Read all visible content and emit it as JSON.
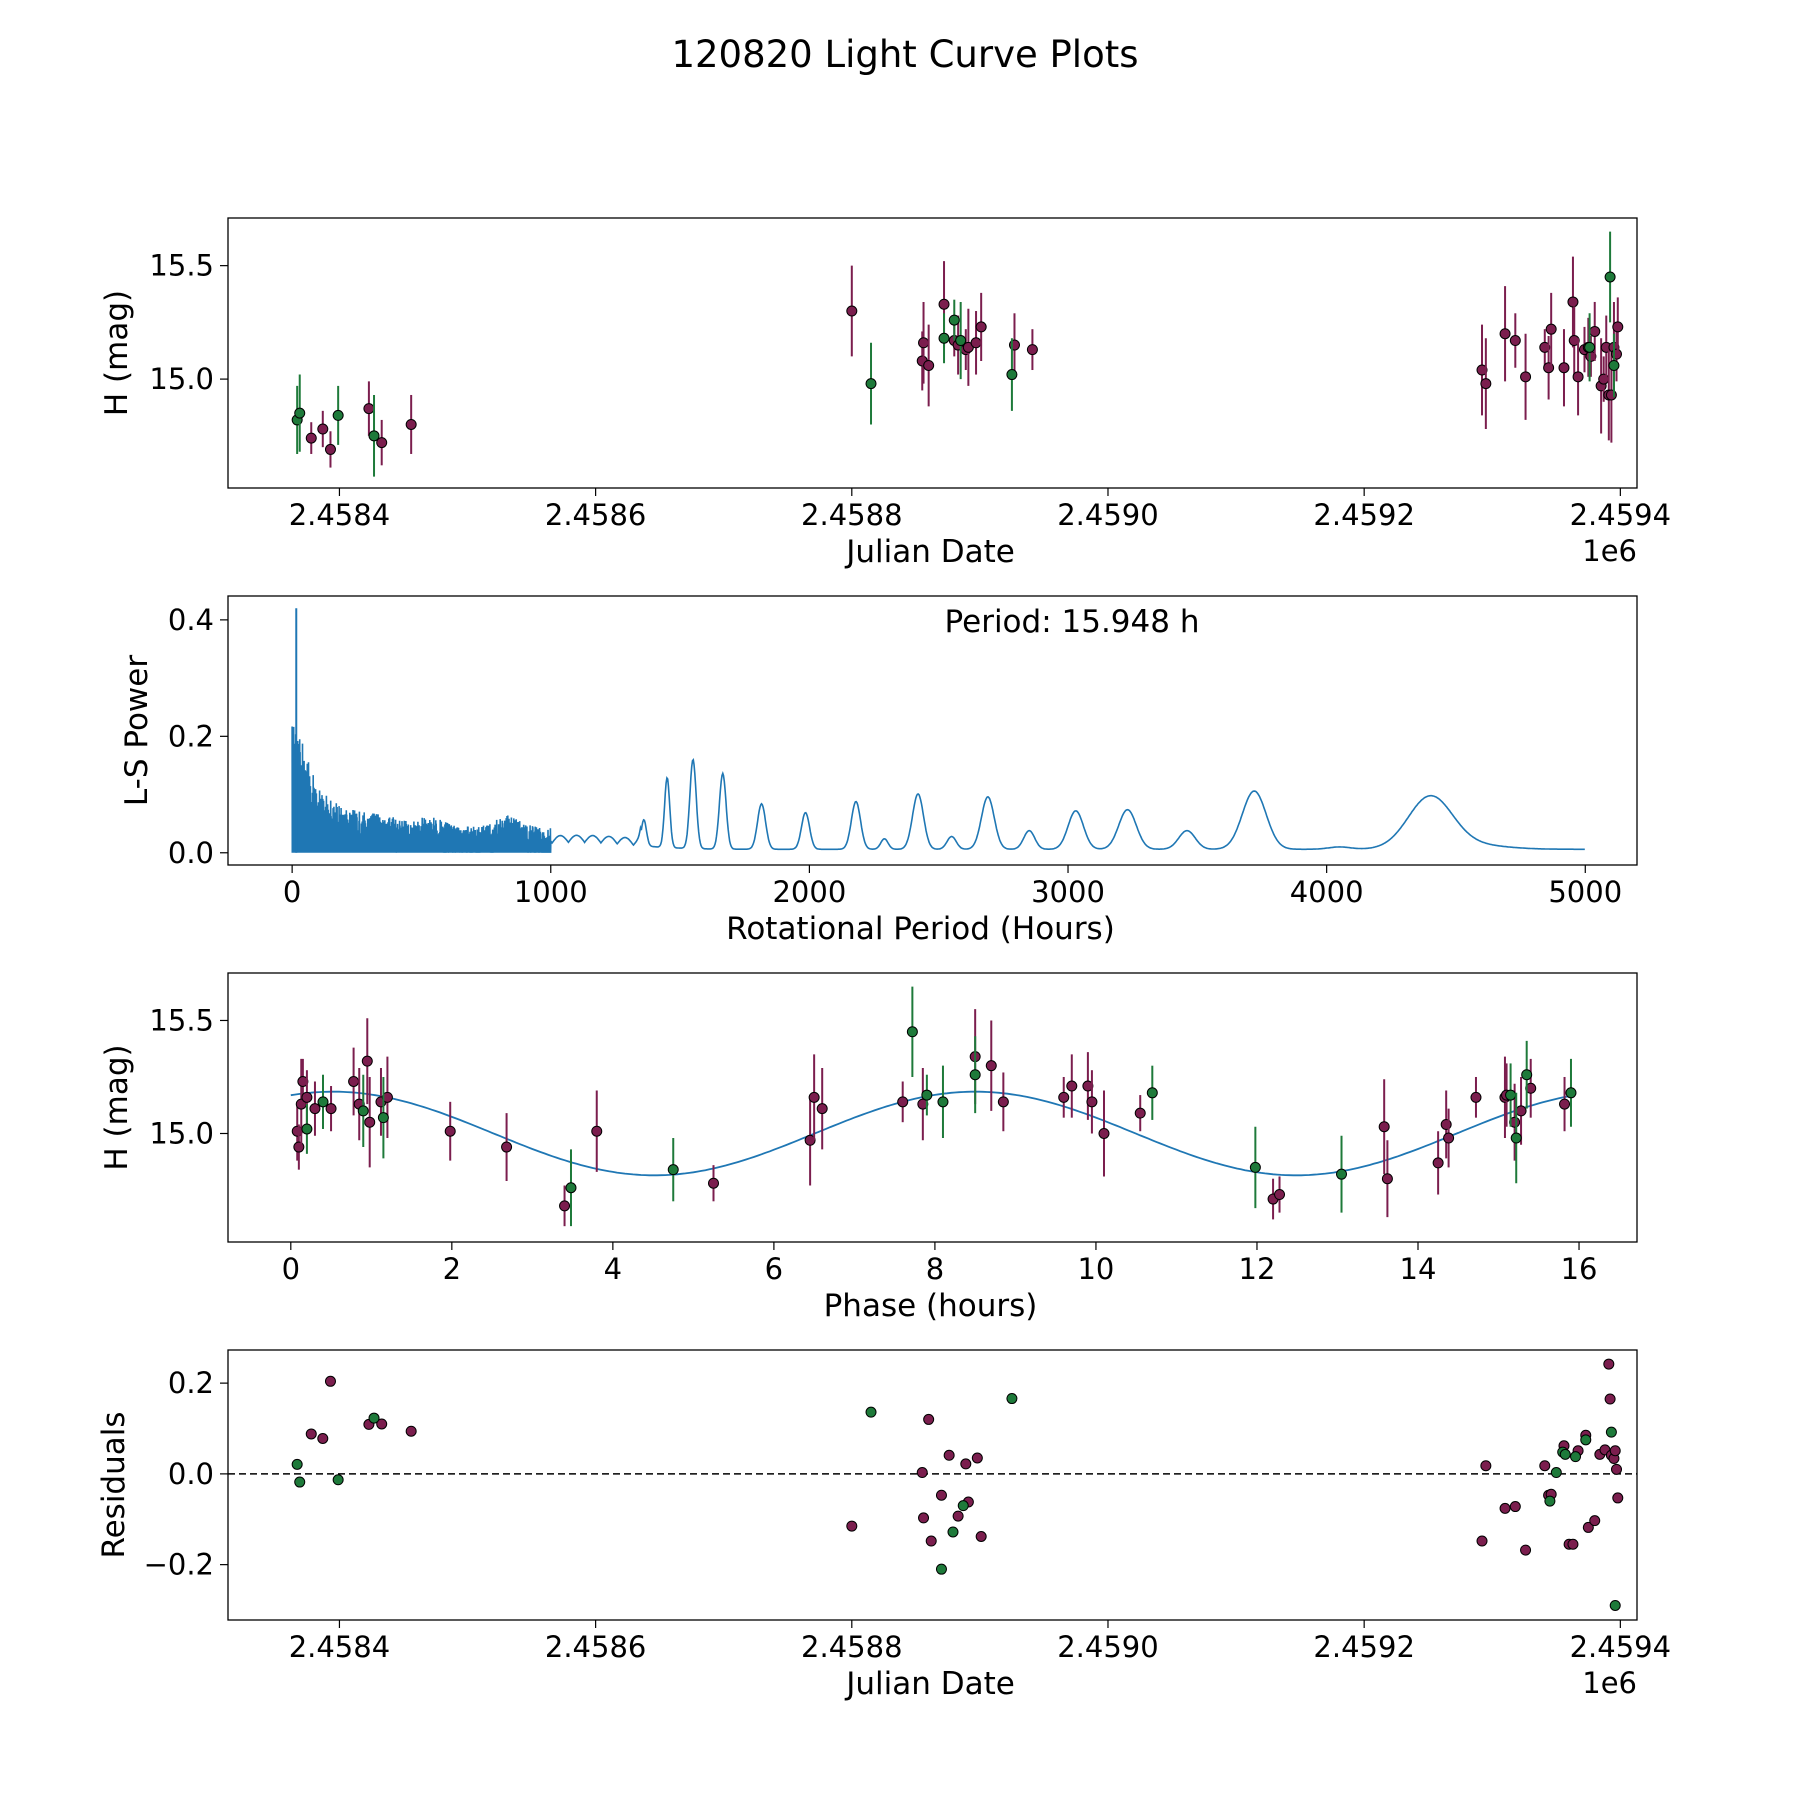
{
  "figure_title": "120820 Light Curve Plots",
  "colors": {
    "filter_a": "#7b1e4e",
    "filter_b": "#1e7a3a",
    "curve": "#1f77b4",
    "edge": "#000000"
  },
  "chart_data": [
    {
      "type": "scatter",
      "xlabel": "Julian Date",
      "ylabel": "H (mag)",
      "offset_label": "1e6",
      "xlim": [
        2458313,
        2459413
      ],
      "ylim": [
        14.52,
        15.71
      ],
      "xticks": [
        2458400,
        2458600,
        2458800,
        2459000,
        2459200,
        2459400
      ],
      "xtick_labels": [
        "2.4584",
        "2.4586",
        "2.4588",
        "2.4590",
        "2.4592",
        "2.4594"
      ],
      "yticks": [
        15.0,
        15.5
      ],
      "ytick_labels": [
        "15.0",
        "15.5"
      ],
      "series": [
        {
          "name": "filter_a",
          "x": [
            2458378,
            2458387,
            2458393,
            2458423,
            2458433,
            2458456,
            2458800,
            2458855,
            2458856,
            2458860,
            2458872,
            2458880,
            2458883,
            2458889,
            2458891,
            2458897,
            2458901,
            2458927,
            2458941,
            2459292,
            2459295,
            2459310,
            2459318,
            2459326,
            2459341,
            2459344,
            2459346,
            2459356,
            2459363,
            2459364,
            2459367,
            2459372,
            2459375,
            2459377,
            2459380,
            2459385,
            2459387,
            2459389,
            2459391,
            2459393,
            2459395,
            2459397,
            2459398
          ],
          "y": [
            14.74,
            14.78,
            14.69,
            14.87,
            14.72,
            14.8,
            15.3,
            15.08,
            15.16,
            15.06,
            15.33,
            15.17,
            15.15,
            15.13,
            15.14,
            15.16,
            15.23,
            15.15,
            15.13,
            15.04,
            14.98,
            15.2,
            15.17,
            15.01,
            15.14,
            15.05,
            15.22,
            15.05,
            15.34,
            15.17,
            15.01,
            15.13,
            15.14,
            15.1,
            15.21,
            14.97,
            15.0,
            15.14,
            14.93,
            14.93,
            15.14,
            15.11,
            15.23
          ],
          "err": [
            0.07,
            0.08,
            0.08,
            0.12,
            0.1,
            0.13,
            0.2,
            0.13,
            0.18,
            0.18,
            0.19,
            0.07,
            0.13,
            0.09,
            0.17,
            0.14,
            0.15,
            0.14,
            0.09,
            0.2,
            0.2,
            0.21,
            0.12,
            0.19,
            0.08,
            0.14,
            0.16,
            0.17,
            0.2,
            0.15,
            0.17,
            0.1,
            0.13,
            0.09,
            0.13,
            0.21,
            0.1,
            0.14,
            0.2,
            0.21,
            0.2,
            0.12,
            0.13
          ]
        },
        {
          "name": "filter_b",
          "x": [
            2458367,
            2458369,
            2458399,
            2458427,
            2458815,
            2458872,
            2458880,
            2458885,
            2458925,
            2459376,
            2459392,
            2459395
          ],
          "y": [
            14.82,
            14.85,
            14.84,
            14.75,
            14.98,
            15.18,
            15.26,
            15.17,
            15.02,
            15.14,
            15.45,
            15.06
          ],
          "err": [
            0.15,
            0.17,
            0.13,
            0.18,
            0.18,
            0.11,
            0.09,
            0.17,
            0.16,
            0.15,
            0.2,
            0.14
          ]
        }
      ]
    },
    {
      "type": "line",
      "xlabel": "Rotational Period (Hours)",
      "ylabel": "L-S Power",
      "annotation": "Period: 15.948 h",
      "xlim": [
        -248,
        5200
      ],
      "ylim": [
        -0.021,
        0.441
      ],
      "xticks": [
        0,
        1000,
        2000,
        3000,
        4000,
        5000
      ],
      "xtick_labels": [
        "0",
        "1000",
        "2000",
        "3000",
        "4000",
        "5000"
      ],
      "yticks": [
        0.0,
        0.2,
        0.4
      ],
      "ytick_labels": [
        "0.0",
        "0.2",
        "0.4"
      ],
      "peak_period_hours": 15.948,
      "peak_power": 0.42,
      "resolved_peaks": [
        {
          "x": 1360,
          "y": 0.045,
          "w": 14
        },
        {
          "x": 1450,
          "y": 0.12,
          "w": 14
        },
        {
          "x": 1550,
          "y": 0.153,
          "w": 17
        },
        {
          "x": 1665,
          "y": 0.13,
          "w": 18
        },
        {
          "x": 1815,
          "y": 0.078,
          "w": 22
        },
        {
          "x": 1985,
          "y": 0.063,
          "w": 22
        },
        {
          "x": 2180,
          "y": 0.082,
          "w": 25
        },
        {
          "x": 2290,
          "y": 0.018,
          "w": 20
        },
        {
          "x": 2420,
          "y": 0.095,
          "w": 30
        },
        {
          "x": 2550,
          "y": 0.022,
          "w": 25
        },
        {
          "x": 2690,
          "y": 0.09,
          "w": 35
        },
        {
          "x": 2850,
          "y": 0.032,
          "w": 30
        },
        {
          "x": 3030,
          "y": 0.066,
          "w": 42
        },
        {
          "x": 3230,
          "y": 0.068,
          "w": 48
        },
        {
          "x": 3460,
          "y": 0.032,
          "w": 45
        },
        {
          "x": 3720,
          "y": 0.1,
          "w": 65
        },
        {
          "x": 4050,
          "y": 0.004,
          "w": 60
        },
        {
          "x": 4400,
          "y": 0.088,
          "w": 120
        }
      ]
    },
    {
      "type": "scatter",
      "xlabel": "Phase (hours)",
      "ylabel": "H (mag)",
      "xlim": [
        -0.78,
        16.72
      ],
      "ylim": [
        14.52,
        15.71
      ],
      "xticks": [
        0,
        2,
        4,
        6,
        8,
        10,
        12,
        14,
        16
      ],
      "xtick_labels": [
        "0",
        "2",
        "4",
        "6",
        "8",
        "10",
        "12",
        "14",
        "16"
      ],
      "yticks": [
        15.0,
        15.5
      ],
      "ytick_labels": [
        "15.0",
        "15.5"
      ],
      "model": {
        "type": "sinusoid",
        "mean": 15.0,
        "amplitude": 0.185,
        "period_hours": 7.974,
        "peak_phase_hours": 8.5
      },
      "series": [
        {
          "name": "filter_a",
          "x": [
            0.08,
            0.1,
            0.13,
            0.15,
            0.2,
            0.3,
            0.5,
            0.78,
            0.85,
            0.95,
            0.98,
            1.12,
            1.2,
            1.98,
            2.68,
            3.4,
            3.8,
            5.25,
            6.45,
            6.5,
            6.6,
            7.6,
            7.85,
            8.5,
            8.7,
            8.85,
            9.6,
            9.7,
            9.9,
            9.95,
            10.1,
            10.55,
            12.2,
            12.28,
            13.58,
            13.62,
            14.25,
            14.35,
            14.38,
            14.72,
            15.08,
            15.1,
            15.2,
            15.28,
            15.4,
            15.82
          ],
          "y": [
            15.01,
            14.94,
            15.13,
            15.23,
            15.16,
            15.11,
            15.11,
            15.23,
            15.13,
            15.32,
            15.05,
            15.14,
            15.16,
            15.01,
            14.94,
            14.68,
            15.01,
            14.78,
            14.97,
            15.16,
            15.11,
            15.14,
            15.13,
            15.34,
            15.3,
            15.14,
            15.16,
            15.21,
            15.21,
            15.14,
            15.0,
            15.09,
            14.71,
            14.73,
            15.03,
            14.8,
            14.87,
            15.04,
            14.98,
            15.16,
            15.16,
            15.17,
            15.05,
            15.1,
            15.2,
            15.13
          ],
          "err": [
            0.13,
            0.1,
            0.2,
            0.1,
            0.12,
            0.12,
            0.1,
            0.15,
            0.16,
            0.19,
            0.2,
            0.15,
            0.18,
            0.13,
            0.15,
            0.09,
            0.18,
            0.08,
            0.2,
            0.19,
            0.18,
            0.09,
            0.16,
            0.21,
            0.2,
            0.13,
            0.09,
            0.14,
            0.15,
            0.14,
            0.19,
            0.08,
            0.09,
            0.08,
            0.21,
            0.17,
            0.14,
            0.15,
            0.13,
            0.09,
            0.18,
            0.14,
            0.17,
            0.15,
            0.13,
            0.12
          ]
        },
        {
          "name": "filter_b",
          "x": [
            0.2,
            0.4,
            0.9,
            1.15,
            3.48,
            4.75,
            7.72,
            7.9,
            8.1,
            8.5,
            10.7,
            11.98,
            13.05,
            15.15,
            15.22,
            15.35,
            15.9
          ],
          "y": [
            15.02,
            15.14,
            15.1,
            15.07,
            14.76,
            14.84,
            15.45,
            15.17,
            15.14,
            15.26,
            15.18,
            14.85,
            14.82,
            15.17,
            14.98,
            15.26,
            15.18
          ],
          "err": [
            0.11,
            0.12,
            0.16,
            0.18,
            0.17,
            0.14,
            0.2,
            0.09,
            0.16,
            0.17,
            0.12,
            0.18,
            0.17,
            0.14,
            0.2,
            0.15,
            0.15
          ]
        }
      ]
    },
    {
      "type": "scatter",
      "xlabel": "Julian Date",
      "ylabel": "Residuals",
      "offset_label": "1e6",
      "xlim": [
        2458313,
        2459413
      ],
      "ylim": [
        -0.322,
        0.273
      ],
      "xticks": [
        2458400,
        2458600,
        2458800,
        2459000,
        2459200,
        2459400
      ],
      "xtick_labels": [
        "2.4584",
        "2.4586",
        "2.4588",
        "2.4590",
        "2.4592",
        "2.4594"
      ],
      "yticks": [
        -0.2,
        0.0,
        0.2
      ],
      "ytick_labels": [
        "−0.2",
        "0.0",
        "0.2"
      ],
      "zero_line": true,
      "series": [
        {
          "name": "filter_a",
          "x": [
            2458378,
            2458387,
            2458393,
            2458423,
            2458433,
            2458456,
            2458800,
            2458855,
            2458856,
            2458860,
            2458862,
            2458870,
            2458876,
            2458883,
            2458889,
            2458891,
            2458898,
            2458901,
            2459292,
            2459295,
            2459310,
            2459318,
            2459326,
            2459341,
            2459344,
            2459346,
            2459356,
            2459360,
            2459363,
            2459367,
            2459373,
            2459375,
            2459380,
            2459384,
            2459388,
            2459391,
            2459392,
            2459393,
            2459395,
            2459396,
            2459397,
            2459398
          ],
          "y": [
            0.088,
            0.078,
            0.204,
            0.109,
            0.11,
            0.094,
            -0.115,
            0.003,
            -0.097,
            0.12,
            -0.148,
            -0.047,
            0.041,
            -0.093,
            0.022,
            -0.062,
            0.035,
            -0.138,
            -0.148,
            0.018,
            -0.076,
            -0.072,
            -0.168,
            0.018,
            -0.047,
            -0.045,
            0.062,
            -0.155,
            -0.155,
            0.051,
            0.085,
            -0.118,
            -0.103,
            0.043,
            0.053,
            0.242,
            0.165,
            0.041,
            0.034,
            0.051,
            0.01,
            -0.053
          ]
        },
        {
          "name": "filter_b",
          "x": [
            2458367,
            2458369,
            2458399,
            2458427,
            2458815,
            2458870,
            2458879,
            2458887,
            2458925,
            2459345,
            2459350,
            2459355,
            2459357,
            2459365,
            2459373,
            2459393,
            2459396
          ],
          "y": [
            0.021,
            -0.018,
            -0.013,
            0.123,
            0.136,
            -0.21,
            -0.128,
            -0.07,
            0.166,
            -0.06,
            0.003,
            0.048,
            0.043,
            0.038,
            0.075,
            0.092,
            -0.29
          ]
        }
      ]
    }
  ]
}
